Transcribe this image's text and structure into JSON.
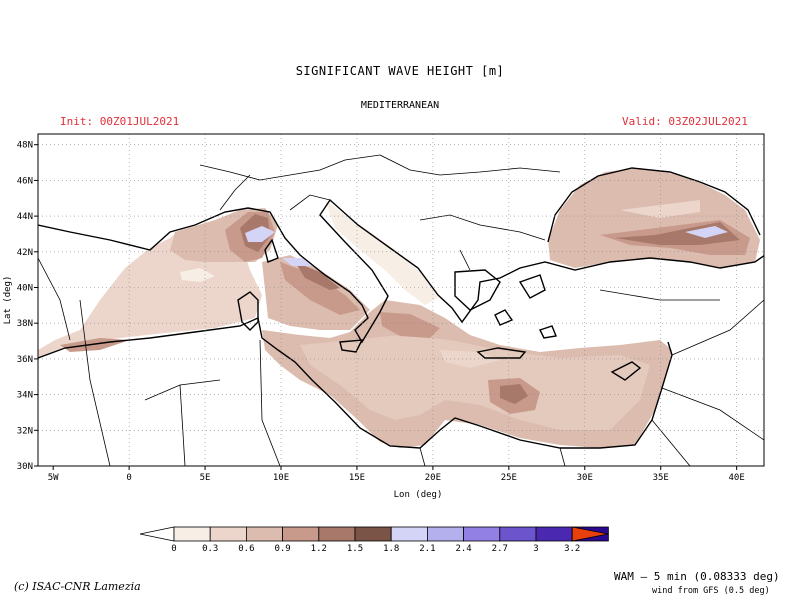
{
  "title": "SIGNIFICANT WAVE HEIGHT [m]",
  "subtitle": "MEDITERRANEAN",
  "init": "Init: 00Z01JUL2021",
  "valid": "Valid: 03Z02JUL2021",
  "x_axis_label": "Lon (deg)",
  "y_axis_label": "Lat (deg)",
  "lon_ticks": [
    {
      "value": -5,
      "label": "5W"
    },
    {
      "value": 0,
      "label": "0"
    },
    {
      "value": 5,
      "label": "5E"
    },
    {
      "value": 10,
      "label": "10E"
    },
    {
      "value": 15,
      "label": "15E"
    },
    {
      "value": 20,
      "label": "20E"
    },
    {
      "value": 25,
      "label": "25E"
    },
    {
      "value": 30,
      "label": "30E"
    },
    {
      "value": 35,
      "label": "35E"
    },
    {
      "value": 40,
      "label": "40E"
    }
  ],
  "lat_ticks": [
    {
      "value": 30,
      "label": "30N"
    },
    {
      "value": 32,
      "label": "32N"
    },
    {
      "value": 34,
      "label": "34N"
    },
    {
      "value": 36,
      "label": "36N"
    },
    {
      "value": 38,
      "label": "38N"
    },
    {
      "value": 40,
      "label": "40N"
    },
    {
      "value": 42,
      "label": "42N"
    },
    {
      "value": 44,
      "label": "44N"
    },
    {
      "value": 46,
      "label": "46N"
    },
    {
      "value": 48,
      "label": "48N"
    }
  ],
  "legend": {
    "labels": [
      "0",
      "0.3",
      "0.6",
      "0.9",
      "1.2",
      "1.5",
      "1.8",
      "2.1",
      "2.4",
      "2.7",
      "3",
      "3.2"
    ],
    "under_color": "#ffffff",
    "colors": [
      "#f7eee6",
      "#ecd6cb",
      "#dcbcaf",
      "#c89a8c",
      "#a8786a",
      "#7a5446",
      "#d4d4f6",
      "#b4b0ee",
      "#9280e4",
      "#6c54cc",
      "#4a28b0",
      "#2a0890"
    ],
    "over_color": "#e8400c"
  },
  "credit": "(c) ISAC-CNR Lamezia",
  "model_note": "WAM – 5 min (0.08333 deg)",
  "wind_note": "wind from GFS (0.5 deg)"
}
